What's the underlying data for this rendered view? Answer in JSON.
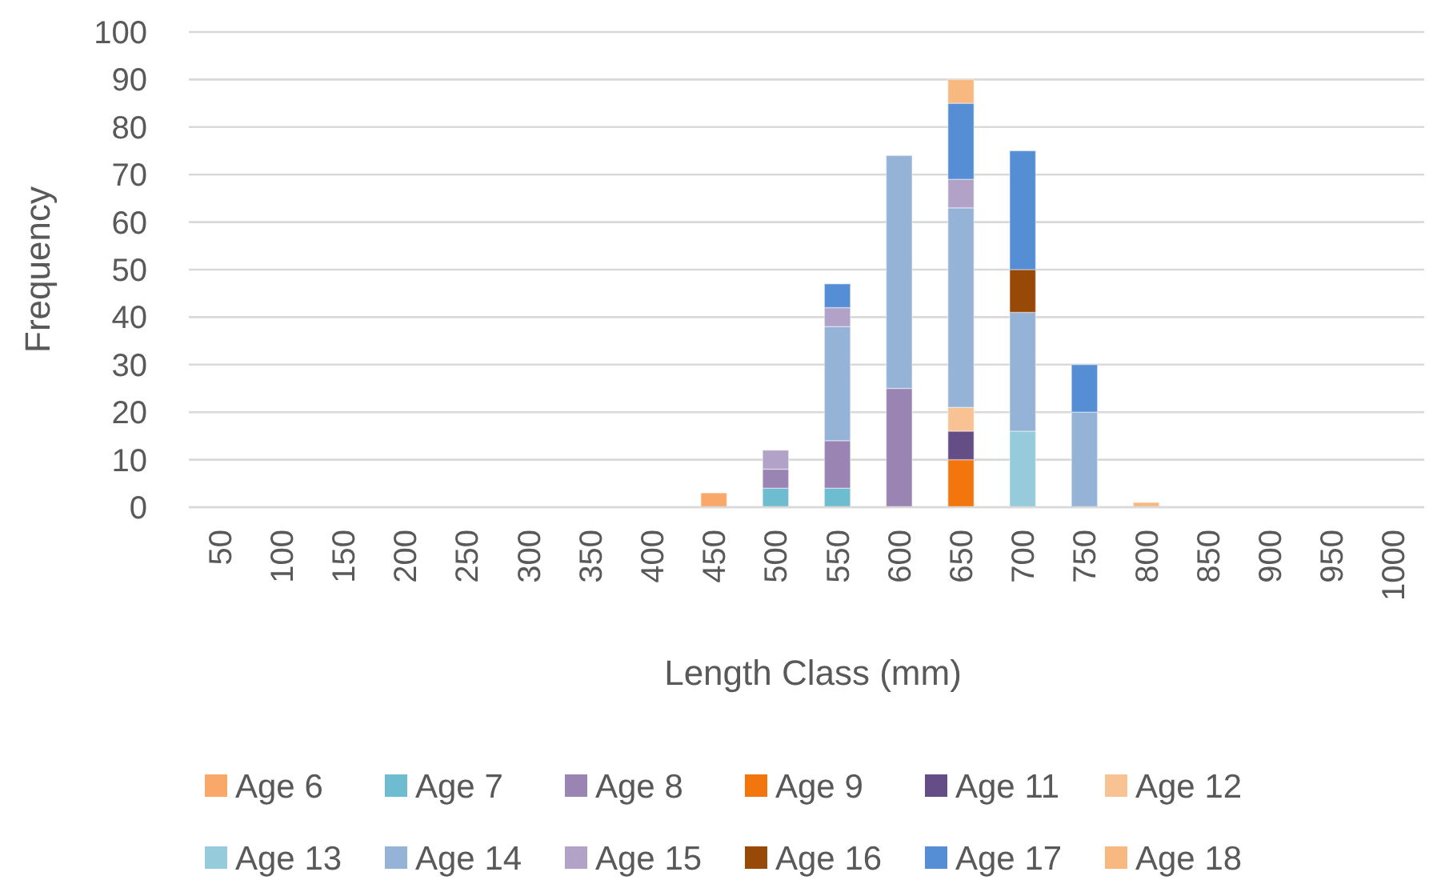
{
  "chart_data": {
    "type": "bar",
    "stacked": true,
    "xlabel": "Length Class (mm)",
    "ylabel": "Frequency",
    "categories": [
      "50",
      "100",
      "150",
      "200",
      "250",
      "300",
      "350",
      "400",
      "450",
      "500",
      "550",
      "600",
      "650",
      "700",
      "750",
      "800",
      "850",
      "900",
      "950",
      "1000"
    ],
    "ylim": [
      0,
      100
    ],
    "yticks": [
      0,
      10,
      20,
      30,
      40,
      50,
      60,
      70,
      80,
      90,
      100
    ],
    "grid": "y",
    "legend": "bottom",
    "series": [
      {
        "name": "Age 6",
        "color": "#f9a86a",
        "values": [
          null,
          null,
          null,
          null,
          null,
          null,
          null,
          null,
          3,
          null,
          null,
          null,
          null,
          null,
          null,
          null,
          null,
          null,
          null,
          null
        ]
      },
      {
        "name": "Age 7",
        "color": "#6dbccf",
        "values": [
          null,
          null,
          null,
          null,
          null,
          null,
          null,
          null,
          null,
          4,
          4,
          null,
          null,
          null,
          null,
          null,
          null,
          null,
          null,
          null
        ]
      },
      {
        "name": "Age 8",
        "color": "#9a84b4",
        "values": [
          null,
          null,
          null,
          null,
          null,
          null,
          null,
          null,
          null,
          4,
          10,
          25,
          null,
          null,
          null,
          null,
          null,
          null,
          null,
          null
        ]
      },
      {
        "name": "Age 9",
        "color": "#f2750d",
        "values": [
          null,
          null,
          null,
          null,
          null,
          null,
          null,
          null,
          null,
          null,
          null,
          null,
          10,
          null,
          null,
          null,
          null,
          null,
          null,
          null
        ]
      },
      {
        "name": "Age 11",
        "color": "#654e85",
        "values": [
          null,
          null,
          null,
          null,
          null,
          null,
          null,
          null,
          null,
          null,
          null,
          null,
          6,
          null,
          null,
          null,
          null,
          null,
          null,
          null
        ]
      },
      {
        "name": "Age 12",
        "color": "#f9c293",
        "values": [
          null,
          null,
          null,
          null,
          null,
          null,
          null,
          null,
          null,
          null,
          null,
          null,
          5,
          null,
          null,
          null,
          null,
          null,
          null,
          null
        ]
      },
      {
        "name": "Age 13",
        "color": "#95cbdb",
        "values": [
          null,
          null,
          null,
          null,
          null,
          null,
          null,
          null,
          null,
          null,
          null,
          null,
          null,
          16,
          null,
          null,
          null,
          null,
          null,
          null
        ]
      },
      {
        "name": "Age 14",
        "color": "#95b3d7",
        "values": [
          null,
          null,
          null,
          null,
          null,
          null,
          null,
          null,
          null,
          null,
          24,
          49,
          42,
          25,
          20,
          null,
          null,
          null,
          null,
          null
        ]
      },
      {
        "name": "Age 15",
        "color": "#b3a2c8",
        "values": [
          null,
          null,
          null,
          null,
          null,
          null,
          null,
          null,
          null,
          4,
          4,
          null,
          6,
          null,
          null,
          null,
          null,
          null,
          null,
          null
        ]
      },
      {
        "name": "Age 16",
        "color": "#984807",
        "values": [
          null,
          null,
          null,
          null,
          null,
          null,
          null,
          null,
          null,
          null,
          null,
          null,
          null,
          9,
          null,
          null,
          null,
          null,
          null,
          null
        ]
      },
      {
        "name": "Age 17",
        "color": "#558ed5",
        "values": [
          null,
          null,
          null,
          null,
          null,
          null,
          null,
          null,
          null,
          null,
          5,
          null,
          16,
          25,
          10,
          null,
          null,
          null,
          null,
          null
        ]
      },
      {
        "name": "Age 18",
        "color": "#f9b880",
        "values": [
          null,
          null,
          null,
          null,
          null,
          null,
          null,
          null,
          null,
          null,
          null,
          null,
          5,
          null,
          null,
          1,
          null,
          null,
          null,
          null
        ]
      }
    ]
  }
}
